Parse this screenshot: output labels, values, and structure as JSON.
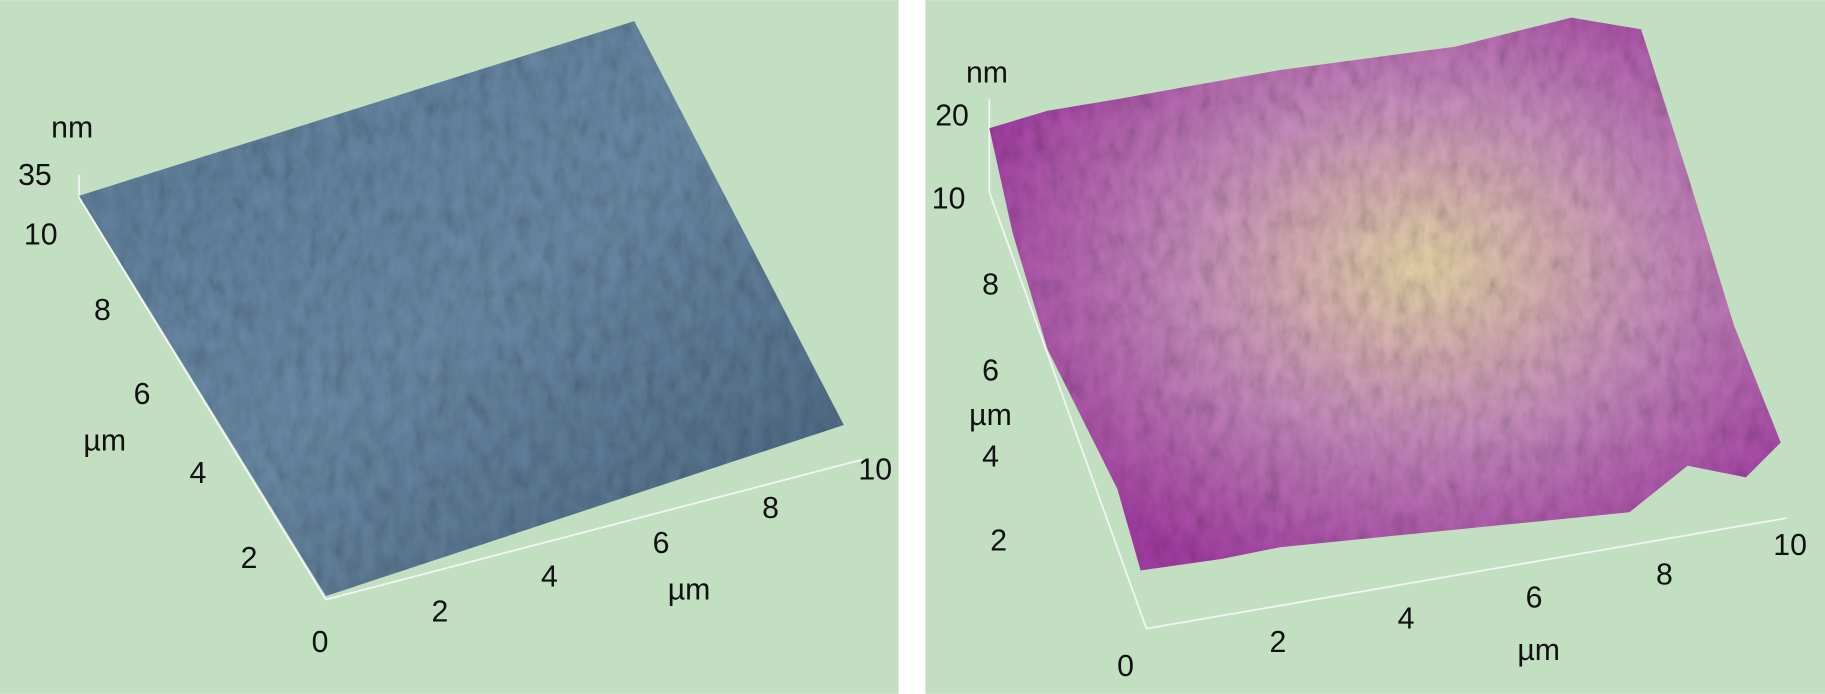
{
  "panels": [
    {
      "z_label": "nm",
      "z_ticks": [
        35
      ],
      "y_label": "µm",
      "y_ticks": [
        10,
        8,
        6,
        4,
        2
      ],
      "origin": 0,
      "x_label": "µm",
      "x_ticks": [
        2,
        4,
        6,
        8,
        10
      ]
    },
    {
      "z_label": "nm",
      "z_ticks": [
        20,
        10
      ],
      "y_label": "µm",
      "y_ticks": [
        8,
        6,
        4,
        2
      ],
      "origin": 0,
      "x_label": "µm",
      "x_ticks": [
        2,
        4,
        6,
        8,
        10
      ]
    }
  ]
}
